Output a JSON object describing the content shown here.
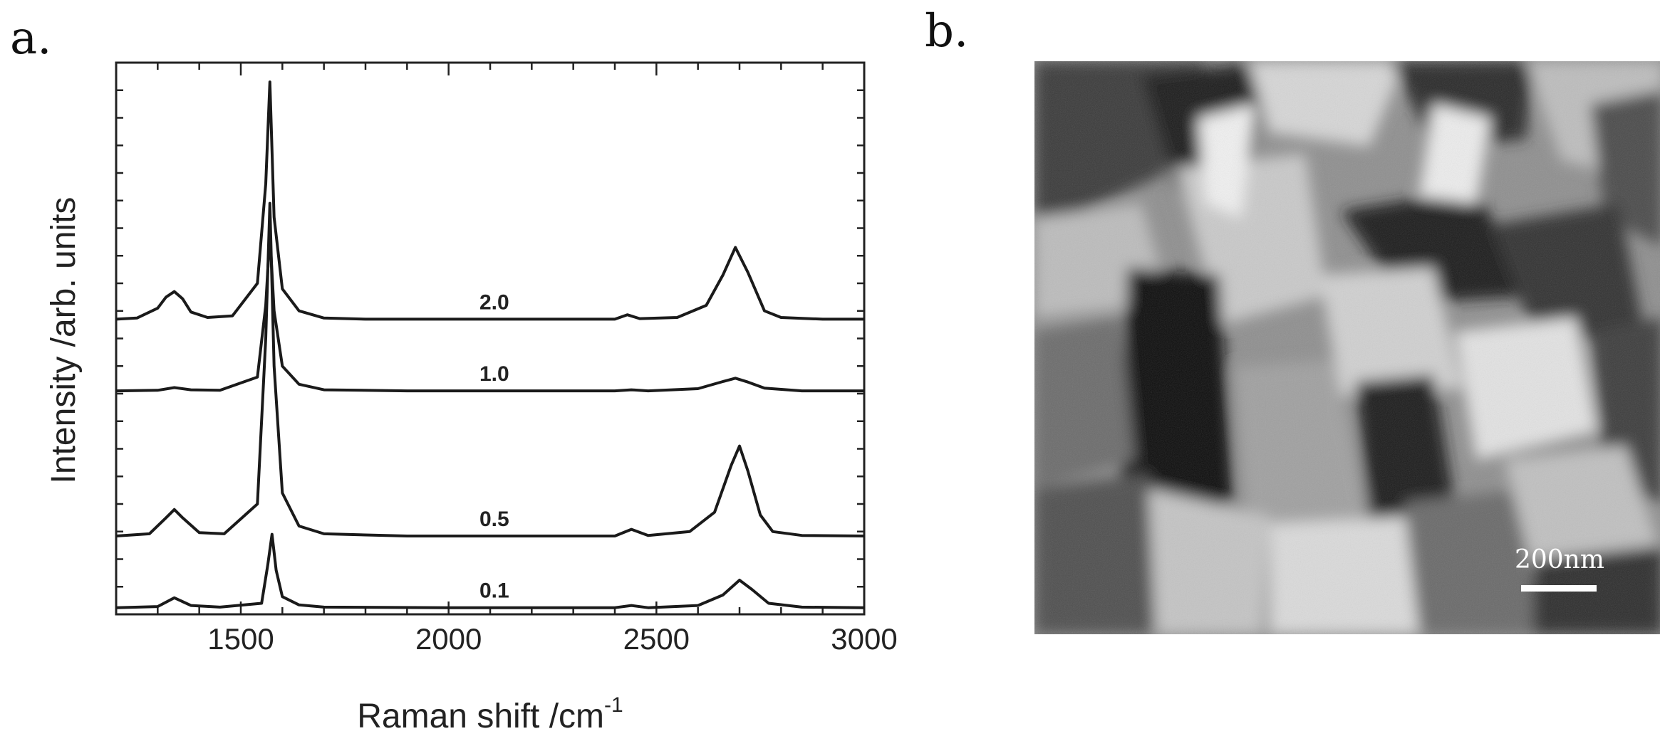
{
  "panels": {
    "a_label": "a.",
    "b_label": "b."
  },
  "chart_data": {
    "type": "line",
    "xlabel": "Raman shift /cm",
    "xlabel_sup": "-1",
    "ylabel": "Intensity /arb. units",
    "xlim": [
      1200,
      3000
    ],
    "x_ticks": [
      1500,
      2000,
      2500,
      3000
    ],
    "grid": false,
    "legend": "none",
    "curve_labels_position": "above each curve near 2100 cm-1",
    "series": [
      {
        "name": "2.0",
        "baseline": 0.535,
        "x": [
          1200,
          1250,
          1300,
          1320,
          1340,
          1360,
          1380,
          1420,
          1480,
          1540,
          1560,
          1570,
          1580,
          1600,
          1640,
          1700,
          1800,
          2000,
          2200,
          2400,
          2430,
          2460,
          2550,
          2620,
          2660,
          2690,
          2720,
          2760,
          2800,
          2900,
          3000
        ],
        "y": [
          0.535,
          0.537,
          0.555,
          0.575,
          0.585,
          0.572,
          0.548,
          0.538,
          0.541,
          0.6,
          0.78,
          0.965,
          0.72,
          0.59,
          0.55,
          0.537,
          0.535,
          0.535,
          0.535,
          0.535,
          0.543,
          0.536,
          0.538,
          0.56,
          0.615,
          0.665,
          0.62,
          0.55,
          0.538,
          0.535,
          0.535
        ]
      },
      {
        "name": "1.0",
        "baseline": 0.405,
        "x": [
          1200,
          1300,
          1340,
          1380,
          1450,
          1540,
          1560,
          1570,
          1580,
          1600,
          1640,
          1700,
          1900,
          2200,
          2400,
          2440,
          2480,
          2600,
          2660,
          2690,
          2720,
          2760,
          2850,
          3000
        ],
        "y": [
          0.405,
          0.406,
          0.411,
          0.407,
          0.406,
          0.43,
          0.56,
          0.69,
          0.55,
          0.45,
          0.417,
          0.407,
          0.405,
          0.405,
          0.405,
          0.407,
          0.405,
          0.409,
          0.422,
          0.428,
          0.421,
          0.41,
          0.405,
          0.405
        ]
      },
      {
        "name": "0.5",
        "baseline": 0.142,
        "x": [
          1200,
          1280,
          1320,
          1340,
          1360,
          1400,
          1460,
          1540,
          1560,
          1570,
          1580,
          1600,
          1640,
          1700,
          1900,
          2200,
          2400,
          2440,
          2480,
          2580,
          2640,
          2680,
          2700,
          2720,
          2750,
          2780,
          2850,
          3000
        ],
        "y": [
          0.142,
          0.146,
          0.175,
          0.19,
          0.175,
          0.148,
          0.146,
          0.2,
          0.5,
          0.745,
          0.45,
          0.22,
          0.16,
          0.146,
          0.142,
          0.142,
          0.142,
          0.154,
          0.143,
          0.15,
          0.185,
          0.27,
          0.305,
          0.26,
          0.18,
          0.15,
          0.143,
          0.142
        ]
      },
      {
        "name": "0.1",
        "baseline": 0.012,
        "x": [
          1200,
          1300,
          1340,
          1380,
          1450,
          1550,
          1565,
          1575,
          1585,
          1600,
          1640,
          1700,
          2000,
          2300,
          2400,
          2440,
          2480,
          2600,
          2660,
          2700,
          2730,
          2770,
          2850,
          3000
        ],
        "y": [
          0.012,
          0.014,
          0.03,
          0.016,
          0.013,
          0.02,
          0.09,
          0.145,
          0.08,
          0.032,
          0.017,
          0.013,
          0.012,
          0.012,
          0.012,
          0.016,
          0.012,
          0.016,
          0.035,
          0.062,
          0.045,
          0.02,
          0.013,
          0.012
        ]
      }
    ]
  },
  "tem": {
    "scale_bar_label": "200nm"
  }
}
